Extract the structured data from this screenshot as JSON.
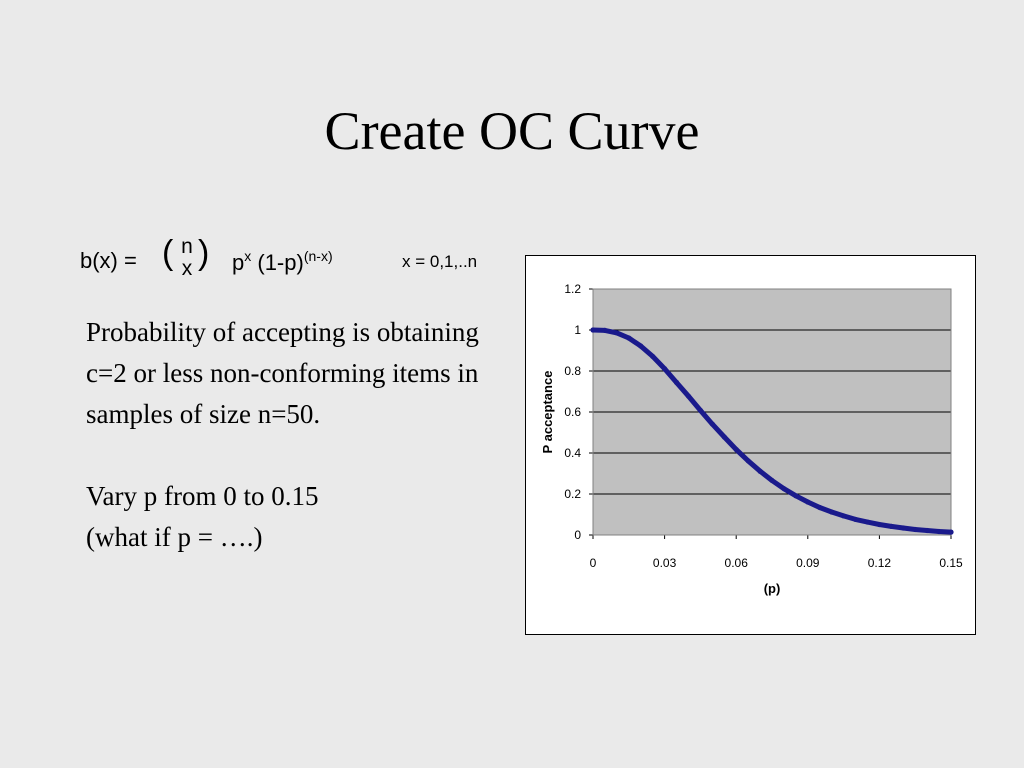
{
  "slide": {
    "title": "Create OC Curve",
    "formula": {
      "lhs": "b(x) =",
      "binom_top": "n",
      "binom_bottom": "x",
      "p": "p",
      "p_exp": "x",
      "q": "(1-p)",
      "q_exp": "(n-x)",
      "range": "x = 0,1,..n"
    },
    "paragraph1": "Probability of accepting is obtaining c=2 or less non-conforming items in samples of size n=50.",
    "paragraph2_line1": "Vary p from 0 to 0.15",
    "paragraph2_line2": "(what if p = ….)"
  },
  "chart_data": {
    "type": "line",
    "title": "",
    "xlabel": "(p)",
    "ylabel": "P acceptance",
    "xlim": [
      0,
      0.15
    ],
    "ylim": [
      0,
      1.2
    ],
    "x_ticks": [
      "0",
      "0.03",
      "0.06",
      "0.09",
      "0.12",
      "0.15"
    ],
    "y_ticks": [
      "0",
      "0.2",
      "0.4",
      "0.6",
      "0.8",
      "1",
      "1.2"
    ],
    "grid": true,
    "legend": "none",
    "colors": {
      "line": "#1a1a8c",
      "plot_bg": "#c0c0c0",
      "grid": "#000000"
    },
    "series": [
      {
        "x": [
          0,
          0.005,
          0.01,
          0.015,
          0.02,
          0.025,
          0.03,
          0.035,
          0.04,
          0.045,
          0.05,
          0.055,
          0.06,
          0.065,
          0.07,
          0.075,
          0.08,
          0.085,
          0.09,
          0.095,
          0.1,
          0.105,
          0.11,
          0.115,
          0.12,
          0.125,
          0.13,
          0.135,
          0.14,
          0.145,
          0.15
        ],
        "values": [
          1.0,
          0.998,
          0.986,
          0.961,
          0.922,
          0.871,
          0.811,
          0.744,
          0.677,
          0.608,
          0.541,
          0.478,
          0.417,
          0.362,
          0.311,
          0.266,
          0.226,
          0.191,
          0.161,
          0.134,
          0.112,
          0.093,
          0.076,
          0.063,
          0.051,
          0.042,
          0.034,
          0.027,
          0.022,
          0.017,
          0.014
        ]
      }
    ]
  }
}
